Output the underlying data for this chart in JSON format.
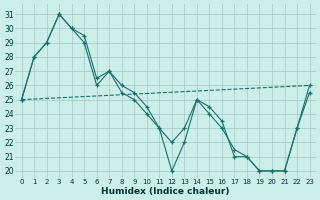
{
  "xlabel": "Humidex (Indice chaleur)",
  "background_color": "#cceee8",
  "grid_color": "#aacccc",
  "line_color": "#1a7068",
  "xlim": [
    -0.5,
    23.5
  ],
  "ylim": [
    19.5,
    31.7
  ],
  "yticks": [
    20,
    21,
    22,
    23,
    24,
    25,
    26,
    27,
    28,
    29,
    30,
    31
  ],
  "xticks": [
    0,
    1,
    2,
    3,
    4,
    5,
    6,
    7,
    8,
    9,
    10,
    11,
    12,
    13,
    14,
    15,
    16,
    17,
    18,
    19,
    20,
    21,
    22,
    23
  ],
  "series1_x": [
    0,
    1,
    2,
    3,
    4,
    5,
    6,
    7,
    8,
    9,
    10,
    11,
    12,
    13,
    14,
    15,
    16,
    17,
    18,
    19,
    20,
    21,
    22,
    23
  ],
  "series1_y": [
    25,
    28,
    29,
    31,
    30,
    29,
    26,
    27,
    25.5,
    25,
    24,
    23,
    20,
    22,
    25,
    24.5,
    23.5,
    21,
    21,
    20,
    20,
    20,
    23,
    26
  ],
  "series2_x": [
    0,
    1,
    2,
    3,
    4,
    5,
    6,
    7,
    8,
    9,
    10,
    11,
    12,
    13,
    14,
    15,
    16,
    17,
    18,
    19,
    20,
    21,
    22,
    23
  ],
  "series2_y": [
    25,
    28,
    29,
    31,
    30,
    29.5,
    26.5,
    27,
    26,
    25.5,
    24.5,
    23,
    22,
    23,
    25,
    24,
    23,
    21.5,
    21,
    20,
    20,
    20,
    23,
    25.5
  ],
  "series3_x": [
    0,
    23
  ],
  "series3_y": [
    25,
    26
  ]
}
